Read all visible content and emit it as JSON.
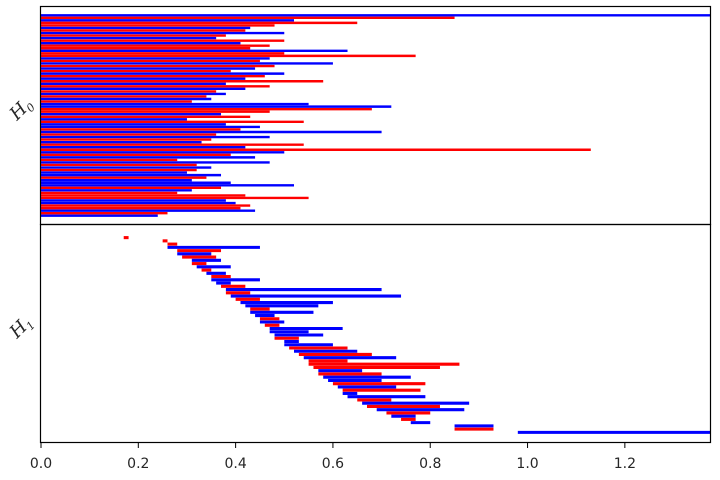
{
  "chart_data": {
    "type": "barcode",
    "xlim": [
      0,
      1.375
    ],
    "x_ticks": [
      "0.0",
      "0.2",
      "0.4",
      "0.6",
      "0.8",
      "1.0",
      "1.2"
    ],
    "x_tick_values": [
      0,
      0.2,
      0.4,
      0.6,
      0.8,
      1.0,
      1.2
    ],
    "grid": false,
    "colors": {
      "series_a": "#0000ff",
      "series_b": "#ff0000",
      "axis": "#000000"
    },
    "rows": [
      {
        "label_main": "H",
        "label_sub": "0",
        "class": "dim-0"
      },
      {
        "label_main": "H",
        "label_sub": "1",
        "class": "dim-1"
      }
    ],
    "H0": {
      "bars": [
        [
          0,
          1.375,
          "b"
        ],
        [
          0,
          0.85,
          "r"
        ],
        [
          0,
          0.52,
          "b"
        ],
        [
          0,
          0.65,
          "r"
        ],
        [
          0,
          0.48,
          "r"
        ],
        [
          0,
          0.43,
          "b"
        ],
        [
          0,
          0.42,
          "r"
        ],
        [
          0,
          0.5,
          "b"
        ],
        [
          0,
          0.38,
          "r"
        ],
        [
          0,
          0.36,
          "b"
        ],
        [
          0,
          0.5,
          "r"
        ],
        [
          0,
          0.41,
          "b"
        ],
        [
          0,
          0.47,
          "r"
        ],
        [
          0,
          0.43,
          "r"
        ],
        [
          0,
          0.63,
          "b"
        ],
        [
          0,
          0.5,
          "r"
        ],
        [
          0,
          0.77,
          "r"
        ],
        [
          0,
          0.47,
          "b"
        ],
        [
          0,
          0.45,
          "r"
        ],
        [
          0,
          0.6,
          "b"
        ],
        [
          0,
          0.48,
          "r"
        ],
        [
          0,
          0.44,
          "b"
        ],
        [
          0,
          0.39,
          "r"
        ],
        [
          0,
          0.5,
          "b"
        ],
        [
          0,
          0.46,
          "r"
        ],
        [
          0,
          0.42,
          "b"
        ],
        [
          0,
          0.58,
          "r"
        ],
        [
          0,
          0.38,
          "b"
        ],
        [
          0,
          0.47,
          "r"
        ],
        [
          0,
          0.42,
          "b"
        ],
        [
          0,
          0.36,
          "r"
        ],
        [
          0,
          0.38,
          "b"
        ],
        [
          0,
          0.34,
          "r"
        ],
        [
          0,
          0.35,
          "b"
        ],
        [
          0,
          0.31,
          "r"
        ],
        [
          0,
          0.55,
          "b"
        ],
        [
          0,
          0.72,
          "b"
        ],
        [
          0,
          0.68,
          "r"
        ],
        [
          0,
          0.47,
          "r"
        ],
        [
          0,
          0.37,
          "b"
        ],
        [
          0,
          0.43,
          "r"
        ],
        [
          0,
          0.3,
          "b"
        ],
        [
          0,
          0.54,
          "r"
        ],
        [
          0,
          0.38,
          "b"
        ],
        [
          0,
          0.45,
          "b"
        ],
        [
          0,
          0.41,
          "r"
        ],
        [
          0,
          0.7,
          "b"
        ],
        [
          0,
          0.36,
          "r"
        ],
        [
          0,
          0.47,
          "b"
        ],
        [
          0,
          0.35,
          "r"
        ],
        [
          0,
          0.33,
          "b"
        ],
        [
          0,
          0.54,
          "r"
        ],
        [
          0,
          0.42,
          "b"
        ],
        [
          0,
          1.13,
          "r"
        ],
        [
          0,
          0.5,
          "b"
        ],
        [
          0,
          0.39,
          "r"
        ],
        [
          0,
          0.44,
          "b"
        ],
        [
          0,
          0.28,
          "r"
        ],
        [
          0,
          0.47,
          "b"
        ],
        [
          0,
          0.32,
          "r"
        ],
        [
          0,
          0.35,
          "b"
        ],
        [
          0,
          0.32,
          "r"
        ],
        [
          0,
          0.3,
          "b"
        ],
        [
          0,
          0.37,
          "b"
        ],
        [
          0,
          0.34,
          "r"
        ],
        [
          0,
          0.31,
          "b"
        ],
        [
          0,
          0.39,
          "b"
        ],
        [
          0,
          0.52,
          "b"
        ],
        [
          0,
          0.37,
          "r"
        ],
        [
          0,
          0.31,
          "b"
        ],
        [
          0,
          0.28,
          "r"
        ],
        [
          0,
          0.42,
          "r"
        ],
        [
          0,
          0.55,
          "r"
        ],
        [
          0,
          0.38,
          "b"
        ],
        [
          0,
          0.4,
          "b"
        ],
        [
          0,
          0.43,
          "r"
        ],
        [
          0,
          0.41,
          "r"
        ],
        [
          0,
          0.44,
          "b"
        ],
        [
          0,
          0.26,
          "r"
        ],
        [
          0,
          0.24,
          "b"
        ]
      ]
    },
    "H1": {
      "bars": [
        [
          0.17,
          0.18,
          "r"
        ],
        [
          0.25,
          0.26,
          "r"
        ],
        [
          0.26,
          0.28,
          "r"
        ],
        [
          0.26,
          0.45,
          "b"
        ],
        [
          0.28,
          0.37,
          "r"
        ],
        [
          0.28,
          0.35,
          "b"
        ],
        [
          0.29,
          0.36,
          "r"
        ],
        [
          0.31,
          0.37,
          "b"
        ],
        [
          0.31,
          0.34,
          "r"
        ],
        [
          0.32,
          0.39,
          "b"
        ],
        [
          0.33,
          0.35,
          "r"
        ],
        [
          0.34,
          0.38,
          "b"
        ],
        [
          0.35,
          0.39,
          "r"
        ],
        [
          0.35,
          0.45,
          "b"
        ],
        [
          0.36,
          0.39,
          "b"
        ],
        [
          0.37,
          0.42,
          "r"
        ],
        [
          0.38,
          0.7,
          "b"
        ],
        [
          0.38,
          0.43,
          "r"
        ],
        [
          0.39,
          0.74,
          "b"
        ],
        [
          0.4,
          0.45,
          "r"
        ],
        [
          0.41,
          0.6,
          "b"
        ],
        [
          0.42,
          0.57,
          "b"
        ],
        [
          0.43,
          0.47,
          "r"
        ],
        [
          0.43,
          0.56,
          "b"
        ],
        [
          0.44,
          0.48,
          "b"
        ],
        [
          0.45,
          0.49,
          "r"
        ],
        [
          0.45,
          0.5,
          "b"
        ],
        [
          0.46,
          0.49,
          "r"
        ],
        [
          0.47,
          0.62,
          "b"
        ],
        [
          0.47,
          0.55,
          "b"
        ],
        [
          0.48,
          0.58,
          "b"
        ],
        [
          0.48,
          0.53,
          "r"
        ],
        [
          0.5,
          0.53,
          "b"
        ],
        [
          0.5,
          0.6,
          "b"
        ],
        [
          0.51,
          0.63,
          "r"
        ],
        [
          0.52,
          0.65,
          "b"
        ],
        [
          0.53,
          0.68,
          "r"
        ],
        [
          0.54,
          0.73,
          "b"
        ],
        [
          0.55,
          0.63,
          "r"
        ],
        [
          0.55,
          0.86,
          "r"
        ],
        [
          0.56,
          0.82,
          "r"
        ],
        [
          0.57,
          0.66,
          "b"
        ],
        [
          0.57,
          0.7,
          "r"
        ],
        [
          0.58,
          0.76,
          "b"
        ],
        [
          0.59,
          0.7,
          "b"
        ],
        [
          0.6,
          0.79,
          "r"
        ],
        [
          0.61,
          0.73,
          "b"
        ],
        [
          0.62,
          0.78,
          "r"
        ],
        [
          0.62,
          0.65,
          "b"
        ],
        [
          0.63,
          0.79,
          "b"
        ],
        [
          0.65,
          0.72,
          "r"
        ],
        [
          0.66,
          0.88,
          "b"
        ],
        [
          0.67,
          0.82,
          "r"
        ],
        [
          0.69,
          0.87,
          "b"
        ],
        [
          0.71,
          0.8,
          "r"
        ],
        [
          0.72,
          0.77,
          "b"
        ],
        [
          0.74,
          0.77,
          "r"
        ],
        [
          0.76,
          0.8,
          "b"
        ],
        [
          0.85,
          0.93,
          "b"
        ],
        [
          0.85,
          0.93,
          "r"
        ],
        [
          0.98,
          1.375,
          "b"
        ]
      ]
    }
  }
}
